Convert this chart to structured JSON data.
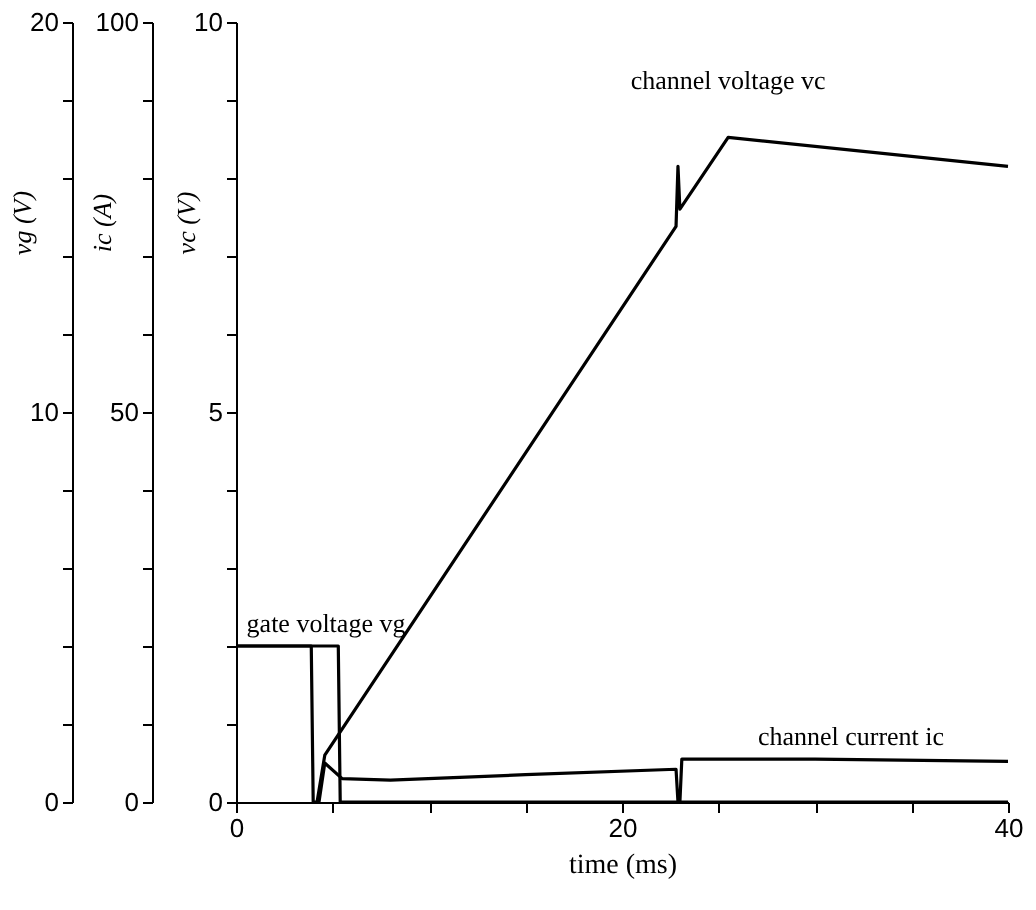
{
  "chart_data": {
    "type": "line",
    "xlabel": "time (ms)",
    "ylabel": "vg (V)",
    "y2label": "ic (A)",
    "y3label": "vc (V)",
    "xlim": [
      0,
      40
    ],
    "xticks": [
      0,
      {
        "value": 5,
        "label": null
      },
      {
        "value": 10,
        "label": null
      },
      {
        "value": 15,
        "label": null
      },
      20,
      {
        "value": 25,
        "label": null
      },
      {
        "value": 30,
        "label": null
      },
      {
        "value": 35,
        "label": null
      },
      40
    ],
    "ylim": [
      0,
      20
    ],
    "yticks": [
      0,
      {
        "value": 2,
        "label": null
      },
      {
        "value": 4,
        "label": null
      },
      {
        "value": 6,
        "label": null
      },
      {
        "value": 8,
        "label": null
      },
      10,
      {
        "value": 12,
        "label": null
      },
      {
        "value": 14,
        "label": null
      },
      {
        "value": 16,
        "label": null
      },
      {
        "value": 18,
        "label": null
      },
      20
    ],
    "y2lim": [
      0,
      100
    ],
    "y2ticks": [
      0,
      {
        "value": 10,
        "label": null
      },
      {
        "value": 20,
        "label": null
      },
      {
        "value": 30,
        "label": null
      },
      {
        "value": 40,
        "label": null
      },
      50,
      {
        "value": 60,
        "label": null
      },
      {
        "value": 70,
        "label": null
      },
      {
        "value": 80,
        "label": null
      },
      {
        "value": 90,
        "label": null
      },
      100
    ],
    "y3lim": [
      0,
      10
    ],
    "y3ticks": [
      0,
      {
        "value": 1,
        "label": null
      },
      {
        "value": 2,
        "label": null
      },
      {
        "value": 3,
        "label": null
      },
      {
        "value": 4,
        "label": null
      },
      5,
      {
        "value": 6,
        "label": null
      },
      {
        "value": 7,
        "label": null
      },
      {
        "value": 8,
        "label": null
      },
      {
        "value": 9,
        "label": null
      },
      10
    ],
    "grid": false,
    "line_style": "solid",
    "marker": "none",
    "series": [
      {
        "name": "gate voltage vg",
        "color": "#000000",
        "x": [
          0,
          5.3,
          5.4,
          40
        ],
        "values": [
          4,
          4,
          0,
          0
        ]
      },
      {
        "name": "channel current ic",
        "color": "#000000",
        "axis": "y2",
        "x": [
          0,
          3.9,
          4.0,
          4.3,
          4.6,
          5.5,
          8,
          15,
          22.8,
          22.9,
          23.0,
          23.1,
          30,
          40
        ],
        "values": [
          20,
          20,
          0,
          0,
          5,
          3,
          2.8,
          3.5,
          4.2,
          0,
          0,
          5.5,
          5.5,
          5.2
        ]
      },
      {
        "name": "channel voltage vc",
        "color": "#000000",
        "axis": "y3",
        "x": [
          4.2,
          4.6,
          22.8,
          22.9,
          23.0,
          25.5,
          40
        ],
        "values": [
          0,
          0.6,
          7.38,
          8.15,
          7.6,
          8.52,
          8.15
        ]
      }
    ]
  }
}
